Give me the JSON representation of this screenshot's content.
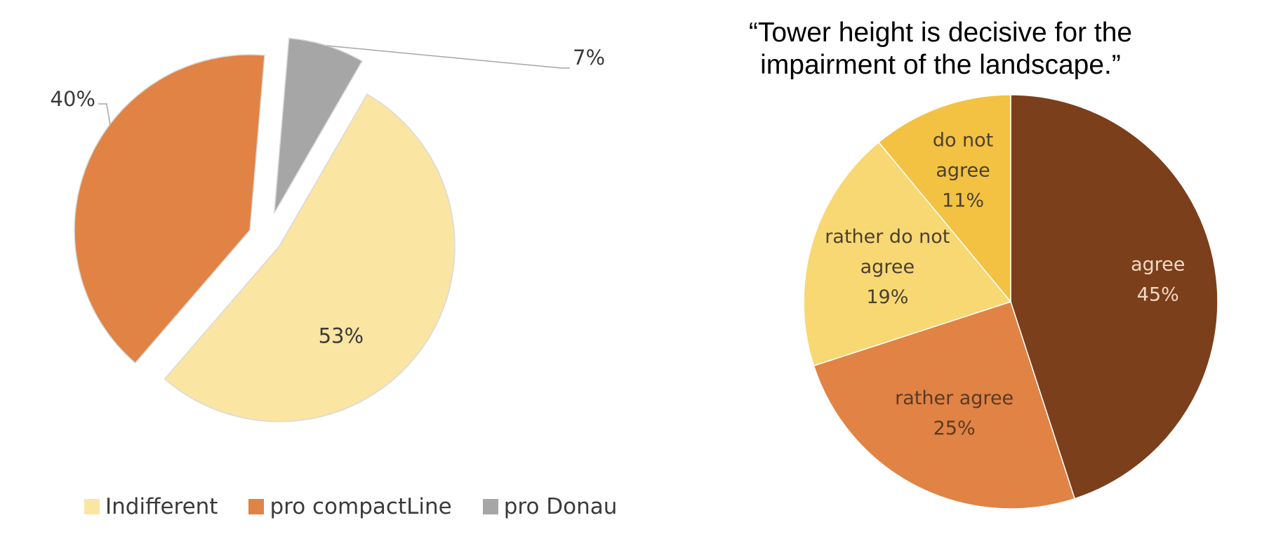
{
  "chart_data": [
    {
      "type": "pie",
      "title": "",
      "slices": [
        {
          "label": "Indifferent",
          "value": 53,
          "value_label": "53%",
          "color": "#FBE5A3"
        },
        {
          "label": "pro compactLine",
          "value": 40,
          "value_label": "40%",
          "color": "#E08345"
        },
        {
          "label": "pro Donau",
          "value": 7,
          "value_label": "7%",
          "color": "#A6A6A6"
        }
      ],
      "exploded": true,
      "legend": "bottom"
    },
    {
      "type": "pie",
      "title_lines": [
        "“Tower height is decisive for the",
        "impairment of the landscape.”"
      ],
      "slices": [
        {
          "label_lines": [
            "agree"
          ],
          "value": 45,
          "value_label": "45%",
          "color": "#7B3F1B",
          "text_color": "#F2D9C6"
        },
        {
          "label_lines": [
            "rather agree"
          ],
          "value": 25,
          "value_label": "25%",
          "color": "#E08345",
          "text_color": "#5a3a22"
        },
        {
          "label_lines": [
            "rather do not",
            "agree"
          ],
          "value": 19,
          "value_label": "19%",
          "color": "#F8D873",
          "text_color": "#4a4030"
        },
        {
          "label_lines": [
            "do not",
            "agree"
          ],
          "value": 11,
          "value_label": "11%",
          "color": "#F3C242",
          "text_color": "#4a4030"
        }
      ],
      "legend": "none"
    }
  ]
}
